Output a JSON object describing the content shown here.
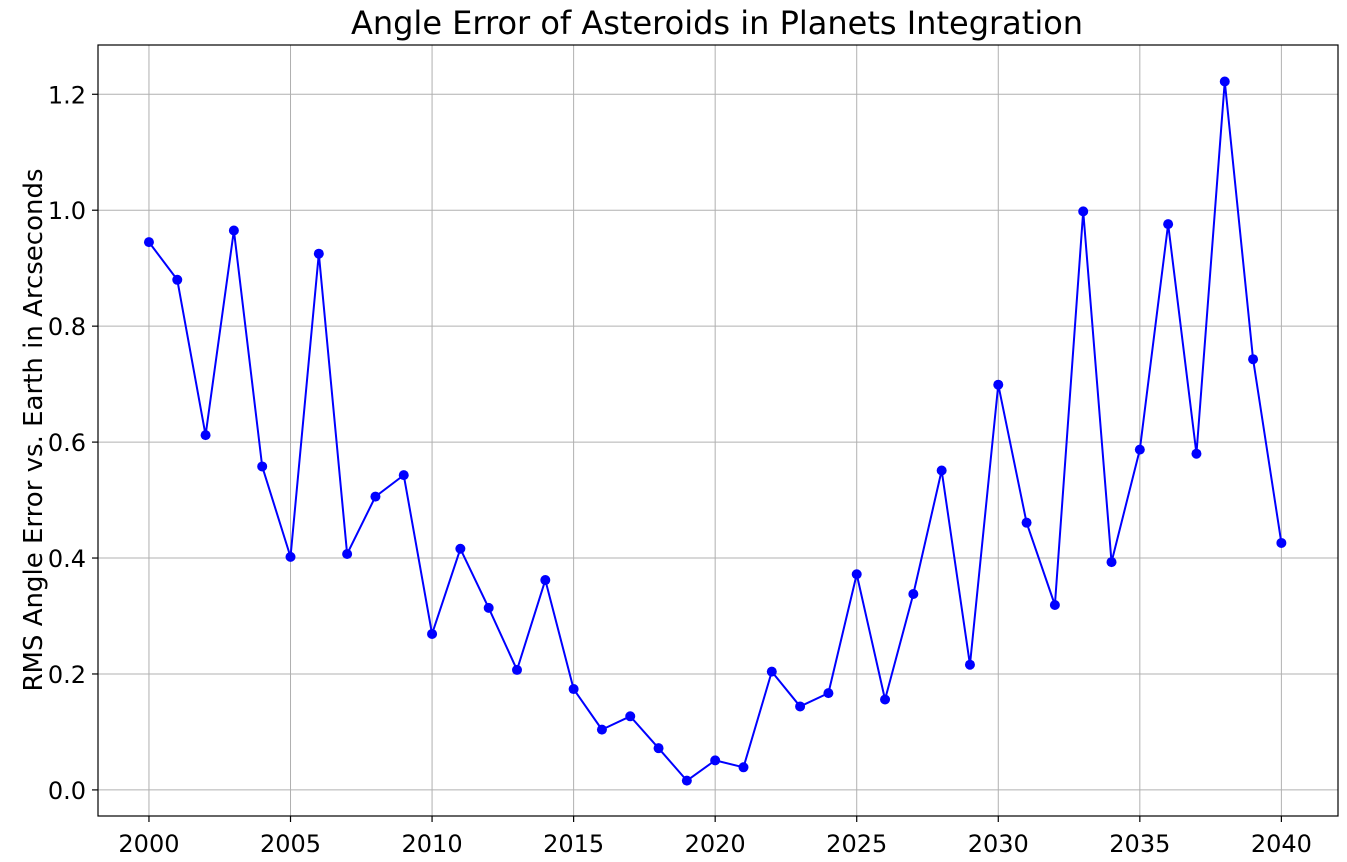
{
  "chart_data": {
    "type": "line",
    "title": "Angle Error of Asteroids in Planets Integration",
    "xlabel": "",
    "ylabel": "RMS Angle Error vs. Earth in Arcseconds",
    "xlim": [
      1998.2,
      2042.0
    ],
    "ylim": [
      -0.045,
      1.285
    ],
    "xticks": [
      2000,
      2005,
      2010,
      2015,
      2020,
      2025,
      2030,
      2035,
      2040
    ],
    "xtick_labels": [
      "2000",
      "2005",
      "2010",
      "2015",
      "2020",
      "2025",
      "2030",
      "2035",
      "2040"
    ],
    "yticks": [
      0.0,
      0.2,
      0.4,
      0.6,
      0.8,
      1.0,
      1.2
    ],
    "ytick_labels": [
      "0.0",
      "0.2",
      "0.4",
      "0.6",
      "0.8",
      "1.0",
      "1.2"
    ],
    "grid": true,
    "series": [
      {
        "color": "#0000ff",
        "marker": "circle",
        "x": [
          2000,
          2001,
          2002,
          2003,
          2004,
          2005,
          2006,
          2007,
          2008,
          2009,
          2010,
          2011,
          2012,
          2013,
          2014,
          2015,
          2016,
          2017,
          2018,
          2019,
          2020,
          2021,
          2022,
          2023,
          2024,
          2025,
          2026,
          2027,
          2028,
          2029,
          2030,
          2031,
          2032,
          2033,
          2034,
          2035,
          2036,
          2037,
          2038,
          2039,
          2040
        ],
        "y": [
          0.945,
          0.88,
          0.612,
          0.965,
          0.558,
          0.402,
          0.925,
          0.407,
          0.506,
          0.543,
          0.269,
          0.416,
          0.314,
          0.207,
          0.362,
          0.174,
          0.104,
          0.127,
          0.072,
          0.016,
          0.051,
          0.039,
          0.204,
          0.144,
          0.167,
          0.372,
          0.156,
          0.338,
          0.551,
          0.216,
          0.699,
          0.461,
          0.319,
          0.998,
          0.393,
          0.587,
          0.976,
          0.58,
          1.222,
          0.743,
          0.426
        ]
      }
    ]
  }
}
